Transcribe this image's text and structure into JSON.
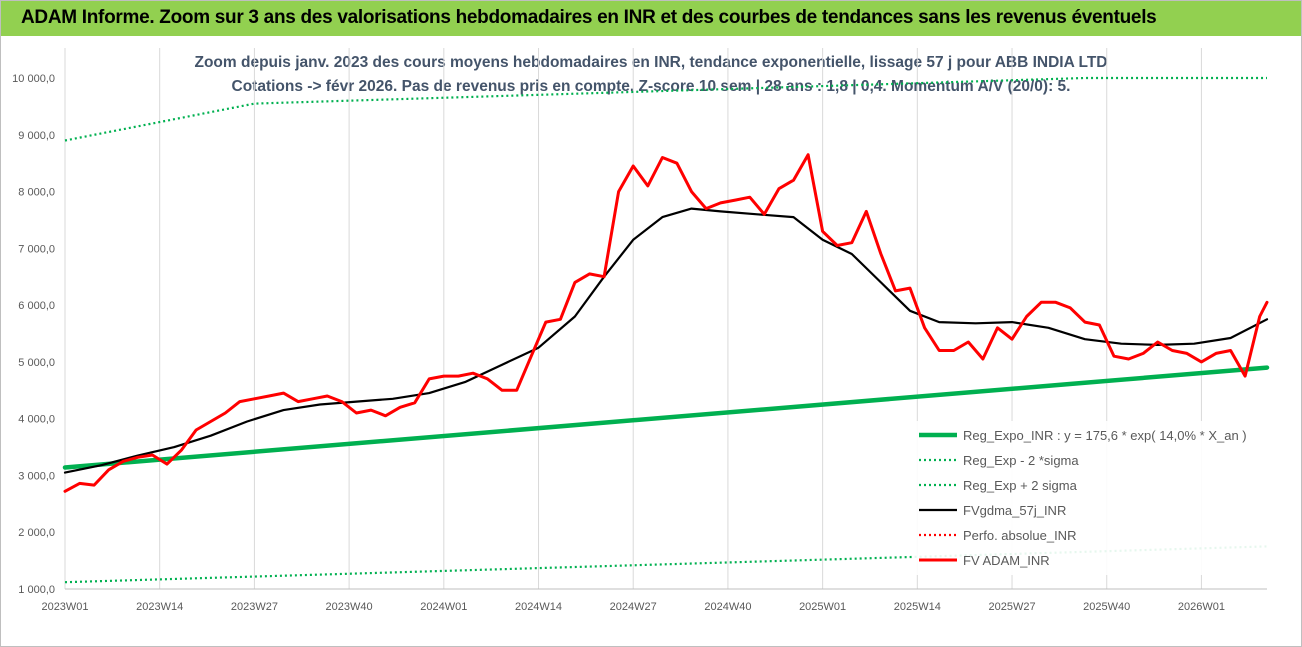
{
  "banner": {
    "title": "ADAM Informe. Zoom sur 3 ans des valorisations hebdomadaires en INR et des courbes de tendances sans les revenus éventuels"
  },
  "chart_data": {
    "type": "line",
    "title": "Zoom depuis janv. 2023 des cours moyens hebdomadaires en INR, tendance exponentielle, lissage 57 j pour ABB INDIA LTD",
    "subtitle": "Cotations -> févr 2026.  Pas de revenus pris en compte. Z-score 10 sem | 28 ans : 1,8 | 0,4. Momentum A/V (20/0): 5.",
    "xlabel": "",
    "ylabel": "",
    "ylim": [
      1000,
      10000
    ],
    "yticks": [
      "1 000,0",
      "2 000,0",
      "3 000,0",
      "4 000,0",
      "5 000,0",
      "6 000,0",
      "7 000,0",
      "8 000,0",
      "9 000,0",
      "10 000,0"
    ],
    "xticks": [
      "2023W01",
      "2023W14",
      "2023W27",
      "2023W40",
      "2024W01",
      "2024W14",
      "2024W27",
      "2024W40",
      "2025W01",
      "2025W14",
      "2025W27",
      "2025W40",
      "2026W01"
    ],
    "grid": "vertical",
    "legend_position": "bottom-right",
    "x_unit": "week index from 2023W01",
    "series": [
      {
        "name": "Reg_Expo_INR : y = 175,6 * exp( 14,0% *  X_an )",
        "color": "#00b050",
        "style": "solid-thick",
        "x": [
          0,
          165
        ],
        "values": [
          3140,
          4900
        ]
      },
      {
        "name": "Reg_Exp - 2 *sigma",
        "color": "#00b050",
        "style": "dotted",
        "x": [
          0,
          165
        ],
        "values": [
          1120,
          1750
        ]
      },
      {
        "name": "Reg_Exp + 2 sigma",
        "color": "#00b050",
        "style": "dotted",
        "x": [
          0,
          26,
          140,
          165
        ],
        "values": [
          8900,
          9550,
          10000,
          10000
        ]
      },
      {
        "name": "FVgdma_57j_INR",
        "color": "#000000",
        "style": "solid",
        "x": [
          0,
          5,
          10,
          15,
          20,
          25,
          30,
          35,
          40,
          45,
          50,
          55,
          60,
          65,
          70,
          74,
          78,
          82,
          86,
          90,
          95,
          100,
          104,
          108,
          112,
          116,
          120,
          125,
          130,
          135,
          140,
          145,
          150,
          155,
          160,
          165
        ],
        "values": [
          3050,
          3180,
          3350,
          3500,
          3700,
          3950,
          4150,
          4250,
          4300,
          4350,
          4450,
          4650,
          4950,
          5250,
          5800,
          6500,
          7150,
          7550,
          7700,
          7650,
          7600,
          7550,
          7150,
          6900,
          6400,
          5900,
          5700,
          5680,
          5700,
          5600,
          5400,
          5320,
          5300,
          5320,
          5420,
          5750
        ]
      },
      {
        "name": "Perfo. absolue_INR",
        "color": "#ff0000",
        "style": "dotted",
        "x": [],
        "values": []
      },
      {
        "name": "FV ADAM_INR",
        "color": "#ff0000",
        "style": "solid-thick",
        "x": [
          0,
          2,
          4,
          6,
          8,
          10,
          12,
          14,
          16,
          18,
          20,
          22,
          24,
          26,
          28,
          30,
          32,
          34,
          36,
          38,
          40,
          42,
          44,
          46,
          48,
          50,
          52,
          54,
          56,
          58,
          60,
          62,
          64,
          66,
          68,
          70,
          72,
          74,
          76,
          78,
          80,
          82,
          84,
          86,
          88,
          90,
          92,
          94,
          96,
          98,
          100,
          102,
          104,
          106,
          108,
          110,
          112,
          114,
          116,
          118,
          120,
          122,
          124,
          126,
          128,
          130,
          132,
          134,
          136,
          138,
          140,
          142,
          144,
          146,
          148,
          150,
          152,
          154,
          156,
          158,
          160,
          162,
          164,
          165
        ],
        "values": [
          2720,
          2860,
          2830,
          3100,
          3250,
          3320,
          3360,
          3200,
          3450,
          3800,
          3950,
          4100,
          4300,
          4350,
          4400,
          4450,
          4300,
          4350,
          4400,
          4300,
          4100,
          4150,
          4050,
          4200,
          4280,
          4700,
          4750,
          4750,
          4800,
          4700,
          4500,
          4500,
          5100,
          5700,
          5750,
          6400,
          6550,
          6500,
          8000,
          8450,
          8100,
          8600,
          8500,
          8000,
          7700,
          7800,
          7850,
          7900,
          7600,
          8050,
          8200,
          8650,
          7300,
          7050,
          7100,
          7650,
          6900,
          6250,
          6300,
          5600,
          5200,
          5200,
          5350,
          5050,
          5600,
          5400,
          5800,
          6050,
          6050,
          5950,
          5700,
          5650,
          5100,
          5050,
          5150,
          5350,
          5200,
          5150,
          5000,
          5150,
          5200,
          4750,
          5800,
          6050
        ]
      }
    ]
  }
}
